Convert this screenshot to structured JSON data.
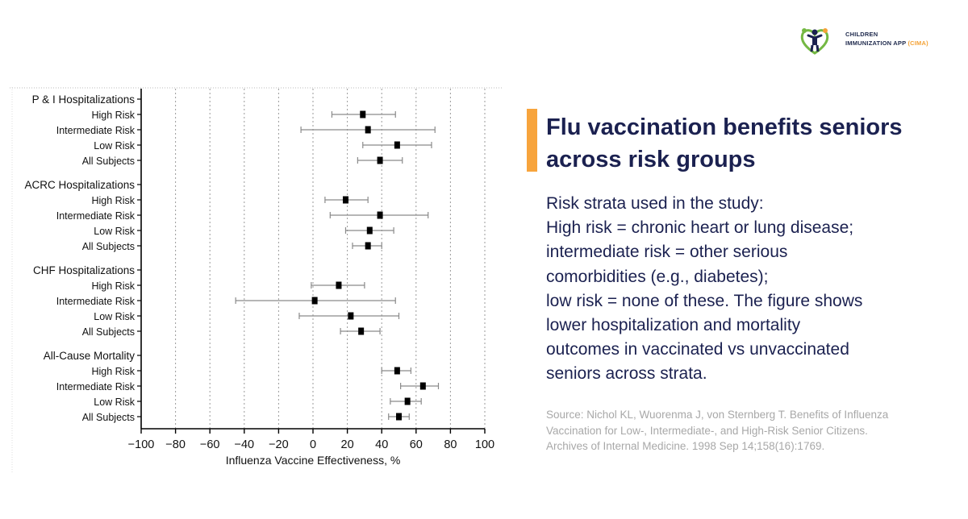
{
  "brand": {
    "name_line1": "CHILDREN",
    "name_line2": "IMMUNIZATION APP",
    "name_accent": "(CIMA)",
    "colors": {
      "navy": "#1b2150",
      "orange": "#f4a236",
      "green": "#74b843"
    }
  },
  "headline": "Flu vaccination benefits seniors across risk groups",
  "accent_color": "#f7a43c",
  "body": {
    "lines": [
      "Risk strata used in the study:",
      "High risk = chronic heart or lung disease;",
      "intermediate risk = other serious",
      "comorbidities (e.g., diabetes);",
      "low risk = none of these. The figure shows",
      "lower hospitalization and mortality",
      "outcomes in vaccinated vs unvaccinated",
      "seniors across strata."
    ]
  },
  "source": "Source: Nichol KL, Wuorenma J, von Sternberg T. Benefits of Influenza Vaccination for Low-, Intermediate-, and High-Risk Senior Citizens. Archives of Internal Medicine. 1998 Sep 14;158(16):1769.",
  "chart_data": {
    "type": "scatter",
    "subtype": "forest-plot",
    "xlabel": "Influenza Vaccine Effectiveness, %",
    "xlim": [
      -100,
      100
    ],
    "xticks": [
      -100,
      -80,
      -60,
      -40,
      -20,
      0,
      20,
      40,
      60,
      80,
      100
    ],
    "xtick_labels": [
      "−100",
      "−80",
      "−60",
      "−40",
      "−20",
      "0",
      "20",
      "40",
      "60",
      "80",
      "100"
    ],
    "grid": "vertical-dotted",
    "groups": [
      {
        "name": "P & I Hospitalizations",
        "rows": [
          {
            "label": "High Risk",
            "value": 29,
            "lo": 11,
            "hi": 48
          },
          {
            "label": "Intermediate Risk",
            "value": 32,
            "lo": -7,
            "hi": 71
          },
          {
            "label": "Low Risk",
            "value": 49,
            "lo": 29,
            "hi": 69
          },
          {
            "label": "All Subjects",
            "value": 39,
            "lo": 26,
            "hi": 52
          }
        ]
      },
      {
        "name": "ACRC Hospitalizations",
        "rows": [
          {
            "label": "High Risk",
            "value": 19,
            "lo": 7,
            "hi": 32
          },
          {
            "label": "Intermediate Risk",
            "value": 39,
            "lo": 10,
            "hi": 67
          },
          {
            "label": "Low Risk",
            "value": 33,
            "lo": 19,
            "hi": 47
          },
          {
            "label": "All Subjects",
            "value": 32,
            "lo": 23,
            "hi": 40
          }
        ]
      },
      {
        "name": "CHF Hospitalizations",
        "rows": [
          {
            "label": "High Risk",
            "value": 15,
            "lo": -1,
            "hi": 30
          },
          {
            "label": "Intermediate Risk",
            "value": 1,
            "lo": -45,
            "hi": 48
          },
          {
            "label": "Low Risk",
            "value": 22,
            "lo": -8,
            "hi": 50
          },
          {
            "label": "All Subjects",
            "value": 28,
            "lo": 16,
            "hi": 39
          }
        ]
      },
      {
        "name": "All-Cause Mortality",
        "rows": [
          {
            "label": "High Risk",
            "value": 49,
            "lo": 40,
            "hi": 57
          },
          {
            "label": "Intermediate Risk",
            "value": 64,
            "lo": 51,
            "hi": 73
          },
          {
            "label": "Low Risk",
            "value": 55,
            "lo": 45,
            "hi": 63
          },
          {
            "label": "All Subjects",
            "value": 50,
            "lo": 44,
            "hi": 56
          }
        ]
      }
    ]
  }
}
